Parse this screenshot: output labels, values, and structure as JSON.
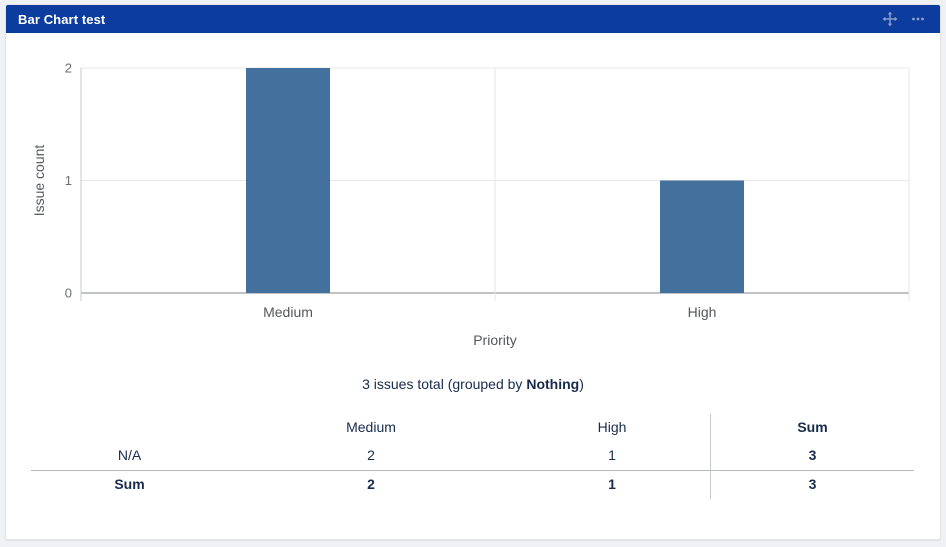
{
  "page": {
    "background": "#eff1f4"
  },
  "header": {
    "title": "Bar Chart test",
    "background": "#0c3d9e",
    "icon_color": "#8fa0cc",
    "icons": [
      "move-icon",
      "more-options-icon"
    ]
  },
  "chart_data": {
    "type": "bar",
    "categories": [
      "Medium",
      "High"
    ],
    "values": [
      2,
      1
    ],
    "title": "",
    "xlabel": "Priority",
    "ylabel": "Issue count",
    "ylim": [
      0,
      2
    ],
    "yticks": [
      0,
      1,
      2
    ],
    "grid": true,
    "legend": "none",
    "bar_color": "#44709d",
    "gridline_color": "#e7e8ea",
    "axis_line_color": "#9a9da1",
    "tick_label_color": "#6b6e73",
    "axis_label_color": "#54575c"
  },
  "summary": {
    "prefix": "3 issues total (grouped by ",
    "group_by": "Nothing",
    "suffix": ")"
  },
  "table": {
    "columns": [
      "",
      "Medium",
      "High",
      "Sum"
    ],
    "rows": [
      {
        "label": "N/A",
        "values": [
          "2",
          "1",
          "3"
        ]
      },
      {
        "label": "Sum",
        "values": [
          "2",
          "1",
          "3"
        ]
      }
    ]
  }
}
